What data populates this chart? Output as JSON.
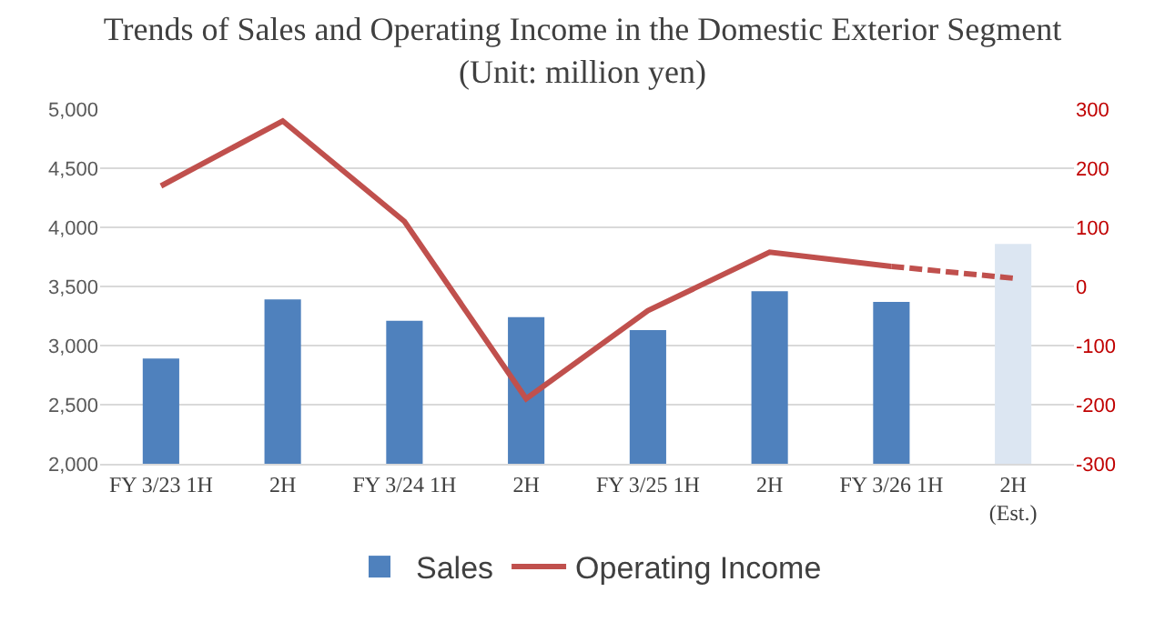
{
  "chart_data": {
    "type": "bar",
    "title": "Trends of Sales and Operating Income in the Domestic Exterior Segment\n(Unit: million yen)",
    "categories": [
      "FY 3/23 1H",
      "2H",
      "FY 3/24 1H",
      "2H",
      "FY 3/25 1H",
      "2H",
      "FY 3/26 1H",
      "2H\n(Est.)"
    ],
    "series": [
      {
        "name": "Sales",
        "colors": [
          "#4f81bd",
          "#4f81bd",
          "#4f81bd",
          "#4f81bd",
          "#4f81bd",
          "#4f81bd",
          "#4f81bd",
          "#dce6f2"
        ],
        "values": [
          2890,
          3390,
          3210,
          3240,
          3130,
          3460,
          3370,
          3860
        ]
      },
      {
        "name": "Operating Income",
        "type": "line",
        "axis": "y2",
        "color": "#c0504d",
        "line_style": "solid",
        "values": [
          170,
          280,
          110,
          -190,
          -41,
          58,
          34,
          null
        ]
      },
      {
        "type": "line",
        "axis": "y2",
        "color": "#c0504d",
        "line_style": "dashed",
        "values": [
          null,
          null,
          null,
          null,
          null,
          null,
          34,
          14
        ]
      }
    ],
    "ylim": [
      2000,
      5000
    ],
    "yticks": [
      {
        "value": 2000,
        "label": "2,000"
      },
      {
        "value": 2500,
        "label": "2,500"
      },
      {
        "value": 3000,
        "label": "3,000"
      },
      {
        "value": 3500,
        "label": "3,500"
      },
      {
        "value": 4000,
        "label": "4,000"
      },
      {
        "value": 4500,
        "label": "4,500"
      },
      {
        "value": 5000,
        "label": "5,000"
      }
    ],
    "y2lim": [
      -300,
      300
    ],
    "y2ticks": [
      -300,
      -200,
      -100,
      0,
      100,
      200,
      300
    ],
    "grid": "y",
    "legend": "bottom"
  }
}
